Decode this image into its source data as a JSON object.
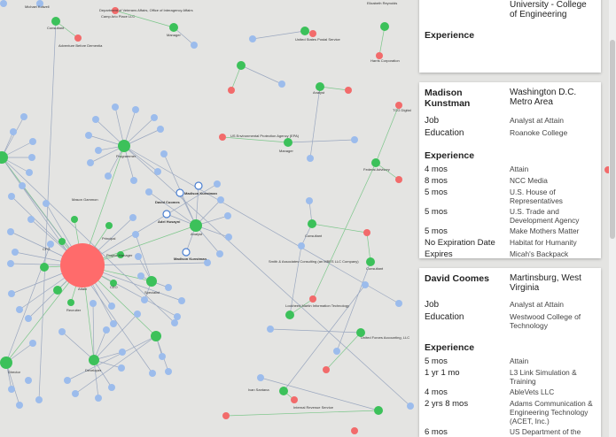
{
  "graph": {
    "labels": {
      "hub": "Attain",
      "programmer": "Programmer",
      "analyst": "Analyst",
      "manager": "Manager",
      "developer": "Developer",
      "specialist": "Specialist",
      "ceo": "CEO",
      "cfo": "CFO",
      "principal": "Principal",
      "consultant": "Consultant",
      "director": "Director",
      "recruiter": "Recruiter",
      "project_manager": "Project Manager",
      "us_postal": "United States Postal Service",
      "veterans": "Department of Veterans Affairs, Office of Interagency Affairs",
      "us_epa": "US Environmental Protection Agency (EPA)",
      "irs": "Internal Revenue Service",
      "harris": "Harris Corporation",
      "tcg": "TCG Digital",
      "smith": "Smith & Associates Consulting (an MBES LLC Company)",
      "lockheed": "Lockheed Martin Information Technology",
      "fed_advisory": "Federal Advisory",
      "camp_arlo": "Camp Arlo Place LLC",
      "adventure": "Adventure Before Dementia",
      "united_forces": "United Forces Accounting, LLC",
      "ian_santana": "Ivan Santana",
      "madison": "Madison Kunstman",
      "david": "David Coomes",
      "adel": "Adel Husayni",
      "madison2": "Madison Kunstman",
      "elizabeth": "Elizabeth Reynolds",
      "michael": "Michael Kolwell",
      "mason": "Mason Gammon"
    }
  },
  "panels": [
    {
      "name": "",
      "location": "University - College of Engineering",
      "section_title": "Experience"
    },
    {
      "name": "Madison Kunstman",
      "location": "Washington D.C. Metro Area",
      "job_label": "Job",
      "job": "Analyst at Attain",
      "education_label": "Education",
      "education": "Roanoke College",
      "section_title": "Experience",
      "experience": [
        {
          "duration": "4 mos",
          "company": "Attain"
        },
        {
          "duration": "8 mos",
          "company": "NCC Media"
        },
        {
          "duration": "5 mos",
          "company": "U.S. House of Representatives"
        },
        {
          "duration": "5 mos",
          "company": "U.S. Trade and Development Agency"
        },
        {
          "duration": "5 mos",
          "company": "Make Mothers Matter"
        },
        {
          "duration": "No Expiration Date",
          "company": "Habitat for Humanity"
        },
        {
          "duration": "Expires",
          "company": "Micah's Backpack"
        }
      ]
    },
    {
      "name": "David Coomes",
      "location": "Martinsburg, West Virginia",
      "job_label": "Job",
      "job": "Analyst at Attain",
      "education_label": "Education",
      "education": "Westwood College of Technology",
      "section_title": "Experience",
      "experience": [
        {
          "duration": "5 mos",
          "company": "Attain"
        },
        {
          "duration": "1 yr 1 mo",
          "company": "L3 Link Simulation & Training"
        },
        {
          "duration": "4 mos",
          "company": "AbleVets LLC"
        },
        {
          "duration": "2 yrs 8 mos",
          "company": "Adams Communication & Engineering Technology (ACET, Inc.)"
        },
        {
          "duration": "6 mos",
          "company": "US Department of the Army"
        }
      ]
    }
  ],
  "colors": {
    "hub": "#ff6b6b",
    "green_node": "#3cc15a",
    "blue_node": "#9cbcec",
    "red_node": "#f26b6b",
    "edge": "#9aa7bf"
  }
}
